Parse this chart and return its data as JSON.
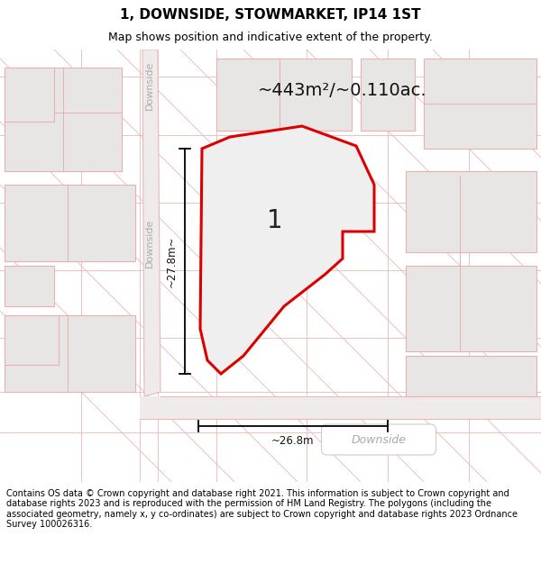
{
  "title": "1, DOWNSIDE, STOWMARKET, IP14 1ST",
  "subtitle": "Map shows position and indicative extent of the property.",
  "footer": "Contains OS data © Crown copyright and database right 2021. This information is subject to Crown copyright and database rights 2023 and is reproduced with the permission of HM Land Registry. The polygons (including the associated geometry, namely x, y co-ordinates) are subject to Crown copyright and database rights 2023 Ordnance Survey 100026316.",
  "area_label": "~443m²/~0.110ac.",
  "plot_number": "1",
  "dim_vertical": "~27.8m~",
  "dim_horizontal": "~26.8m",
  "road_label_diag": "Downside",
  "road_label_vert": "Downside",
  "road_label_horiz": "Downside",
  "bg_color": "#f7f4f4",
  "plot_fill": "#efefef",
  "plot_stroke": "#dd0000",
  "road_color": "#f0ebeb",
  "road_border": "#e8b8b8",
  "building_fill": "#e8e5e5",
  "building_stroke": "#e8b0b0",
  "title_fontsize": 11,
  "subtitle_fontsize": 9,
  "footer_fontsize": 7.0
}
